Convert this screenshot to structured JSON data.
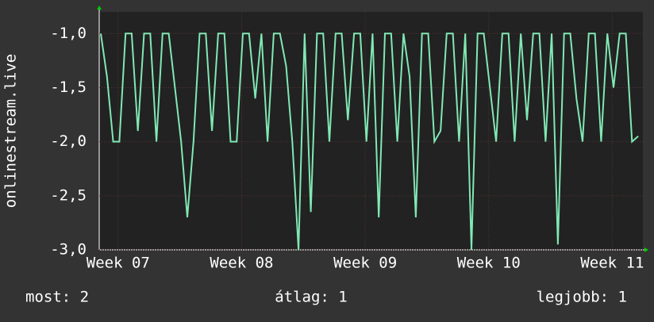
{
  "chart_data": {
    "type": "line",
    "y_label": "onlinestream.live",
    "x": [
      6.86,
      6.91,
      6.96,
      7.01,
      7.06,
      7.11,
      7.16,
      7.21,
      7.26,
      7.31,
      7.36,
      7.41,
      7.46,
      7.51,
      7.56,
      7.61,
      7.66,
      7.71,
      7.76,
      7.81,
      7.86,
      7.91,
      7.96,
      8.01,
      8.06,
      8.11,
      8.16,
      8.21,
      8.26,
      8.31,
      8.36,
      8.41,
      8.46,
      8.51,
      8.56,
      8.61,
      8.66,
      8.71,
      8.76,
      8.81,
      8.86,
      8.91,
      8.96,
      9.01,
      9.06,
      9.11,
      9.16,
      9.21,
      9.26,
      9.31,
      9.36,
      9.41,
      9.46,
      9.51,
      9.56,
      9.61,
      9.66,
      9.71,
      9.76,
      9.81,
      9.86,
      9.91,
      9.96,
      10.01,
      10.06,
      10.11,
      10.16,
      10.21,
      10.26,
      10.31,
      10.36,
      10.41,
      10.46,
      10.51,
      10.56,
      10.61,
      10.66,
      10.71,
      10.76,
      10.81,
      10.86,
      10.91,
      10.96,
      11.01,
      11.06,
      11.11,
      11.16,
      11.21
    ],
    "series": [
      {
        "color": "#80e8b4",
        "values": [
          -1,
          -1.4,
          -2,
          -2,
          -1,
          -1,
          -1.9,
          -1,
          -1,
          -2,
          -1,
          -1,
          -1.5,
          -2,
          -2.7,
          -2,
          -1,
          -1,
          -1.9,
          -1,
          -1,
          -2,
          -2,
          -1,
          -1,
          -1.6,
          -1,
          -2,
          -1,
          -1,
          -1.3,
          -2,
          -3,
          -1,
          -2.65,
          -1,
          -1,
          -2,
          -1,
          -1,
          -1.8,
          -1,
          -1,
          -2,
          -1,
          -2.7,
          -1,
          -1,
          -2,
          -1,
          -1.4,
          -2.7,
          -1,
          -1,
          -2,
          -1.9,
          -1,
          -1,
          -2,
          -1,
          -3,
          -1,
          -1,
          -1.5,
          -2,
          -1,
          -1,
          -2,
          -1,
          -1.8,
          -1,
          -1,
          -2,
          -1,
          -2.95,
          -1,
          -1,
          -1.6,
          -2,
          -1,
          -1,
          -2,
          -1,
          -1.5,
          -1,
          -1,
          -2,
          -1.95
        ]
      }
    ],
    "xlim": [
      6.847,
      11.248
    ],
    "xticks": [
      {
        "value": 7,
        "label": "Week 07"
      },
      {
        "value": 8,
        "label": "Week 08"
      },
      {
        "value": 9,
        "label": "Week 09"
      },
      {
        "value": 10,
        "label": "Week 10"
      },
      {
        "value": 11,
        "label": "Week 11"
      }
    ],
    "ylim": [
      -3.0,
      -0.8
    ],
    "yticks": [
      {
        "value": -3,
        "label": "-3,0"
      },
      {
        "value": -2.5,
        "label": "-2,5"
      },
      {
        "value": -2,
        "label": "-2,0"
      },
      {
        "value": -1.5,
        "label": "-1,5"
      },
      {
        "value": -1,
        "label": "-1,0"
      }
    ],
    "grid": true,
    "footer": [
      "most: 2",
      "átlag: 1",
      "legjobb: 1"
    ]
  }
}
